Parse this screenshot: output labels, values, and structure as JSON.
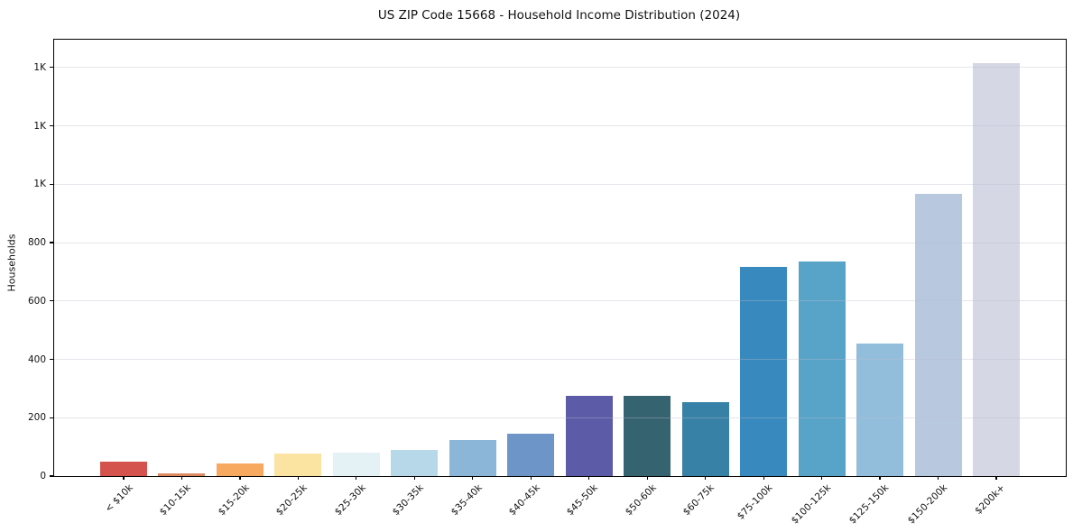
{
  "chart_data": {
    "type": "bar",
    "title": "US ZIP Code 15668 - Household Income Distribution (2024)",
    "xlabel": "",
    "ylabel": "Households",
    "categories": [
      "< $10k",
      "$10-15k",
      "$15-20k",
      "$20-25k",
      "$25-30k",
      "$30-35k",
      "$35-40k",
      "$40-45k",
      "$45-50k",
      "$50-60k",
      "$60-75k",
      "$75-100k",
      "$100-125k",
      "$125-150k",
      "$150-200k",
      "$200k+"
    ],
    "values": [
      48,
      10,
      43,
      76,
      80,
      90,
      123,
      145,
      275,
      275,
      253,
      716,
      734,
      454,
      966,
      1415
    ],
    "bar_colors": [
      "#d5534d",
      "#dd8a62",
      "#f7a95f",
      "#fbe3a2",
      "#e4f1f5",
      "#b7d8e8",
      "#8cb6d8",
      "#6d95c7",
      "#5c5ba8",
      "#366370",
      "#3780a6",
      "#3889bd",
      "#58a3c8",
      "#93bedb",
      "#b8c9df",
      "#d6d7e4"
    ],
    "ylim": [
      0,
      1495
    ],
    "yticks": [
      {
        "value": 0,
        "label": "0"
      },
      {
        "value": 200,
        "label": "200"
      },
      {
        "value": 400,
        "label": "400"
      },
      {
        "value": 600,
        "label": "600"
      },
      {
        "value": 800,
        "label": "800"
      },
      {
        "value": 1000,
        "label": "1K"
      },
      {
        "value": 1200,
        "label": "1K"
      },
      {
        "value": 1400,
        "label": "1K"
      }
    ],
    "grid": "horizontal-light-over-bars",
    "legend": "none",
    "x_tick_rotation_deg": 45
  },
  "colors": {
    "background": "#ffffff",
    "spine": "#000000",
    "grid": "#e8e8f0",
    "text": "#111111"
  }
}
